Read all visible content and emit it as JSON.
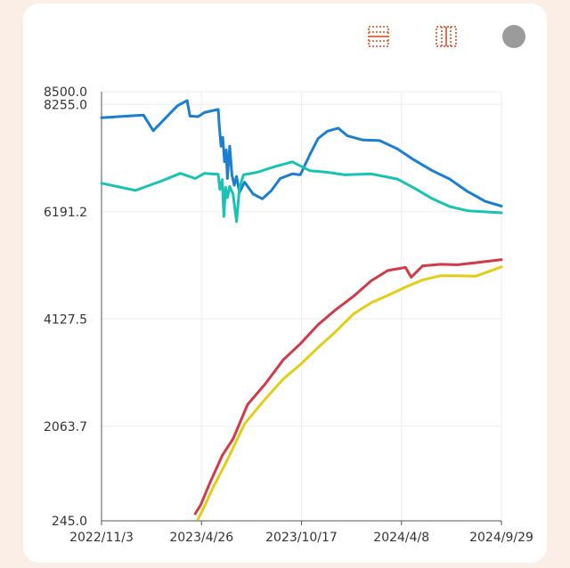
{
  "colors": {
    "page_bg": "#fbeee6",
    "card_bg": "#ffffff",
    "toolbar_icon": "#e8704d",
    "toggle": "#9b9b9b",
    "grid": "#eeeeee",
    "axis": "#555555"
  },
  "toolbar": {
    "icons": [
      "layout-rows-icon",
      "layout-columns-icon",
      "circle-toggle-icon"
    ]
  },
  "chart_data": {
    "type": "line",
    "title": "",
    "xlabel": "",
    "ylabel": "",
    "x_ticks": [
      "2022/11/3",
      "2023/4/26",
      "2023/10/17",
      "2024/4/8",
      "2024/9/29"
    ],
    "x_range": [
      "2022/11/3",
      "2024/9/29"
    ],
    "y_ticks": [
      "245.0",
      "2063.7",
      "4127.5",
      "6191.2",
      "8255.0",
      "8500.0"
    ],
    "ylim": [
      245.0,
      8500.0
    ],
    "grid": true,
    "legend": "none",
    "series": [
      {
        "color": "#1a7fd0",
        "points": [
          [
            "2022/11/3",
            8000
          ],
          [
            "2023/1/15",
            8050
          ],
          [
            "2023/2/1",
            7750
          ],
          [
            "2023/3/15",
            8230
          ],
          [
            "2023/4/1",
            8330
          ],
          [
            "2023/4/6",
            8030
          ],
          [
            "2023/4/20",
            8020
          ],
          [
            "2023/5/1",
            8100
          ],
          [
            "2023/5/25",
            8160
          ],
          [
            "2023/5/27",
            7850
          ],
          [
            "2023/5/30",
            7450
          ],
          [
            "2023/6/2",
            7620
          ],
          [
            "2023/6/5",
            7150
          ],
          [
            "2023/6/8",
            7380
          ],
          [
            "2023/6/10",
            6830
          ],
          [
            "2023/6/14",
            7450
          ],
          [
            "2023/6/18",
            6900
          ],
          [
            "2023/6/22",
            6700
          ],
          [
            "2023/6/26",
            6870
          ],
          [
            "2023/7/1",
            6560
          ],
          [
            "2023/7/10",
            6760
          ],
          [
            "2023/7/25",
            6530
          ],
          [
            "2023/8/10",
            6440
          ],
          [
            "2023/8/25",
            6590
          ],
          [
            "2023/9/10",
            6830
          ],
          [
            "2023/10/1",
            6920
          ],
          [
            "2023/10/15",
            6900
          ],
          [
            "2023/11/1",
            7300
          ],
          [
            "2023/11/15",
            7600
          ],
          [
            "2023/12/1",
            7740
          ],
          [
            "2023/12/20",
            7800
          ],
          [
            "2024/1/5",
            7650
          ],
          [
            "2024/2/1",
            7570
          ],
          [
            "2024/3/1",
            7560
          ],
          [
            "2024/4/1",
            7400
          ],
          [
            "2024/5/1",
            7180
          ],
          [
            "2024/6/1",
            6980
          ],
          [
            "2024/7/1",
            6820
          ],
          [
            "2024/8/1",
            6580
          ],
          [
            "2024/9/1",
            6390
          ],
          [
            "2024/9/29",
            6300
          ]
        ]
      },
      {
        "color": "#19c3b4",
        "points": [
          [
            "2022/11/3",
            6740
          ],
          [
            "2023/1/1",
            6600
          ],
          [
            "2023/2/15",
            6780
          ],
          [
            "2023/3/20",
            6930
          ],
          [
            "2023/4/15",
            6830
          ],
          [
            "2023/5/1",
            6930
          ],
          [
            "2023/5/25",
            6910
          ],
          [
            "2023/5/28",
            6620
          ],
          [
            "2023/6/1",
            6810
          ],
          [
            "2023/6/4",
            6100
          ],
          [
            "2023/6/7",
            6660
          ],
          [
            "2023/6/10",
            6460
          ],
          [
            "2023/6/14",
            6680
          ],
          [
            "2023/6/20",
            6530
          ],
          [
            "2023/6/26",
            6000
          ],
          [
            "2023/7/1",
            6640
          ],
          [
            "2023/7/8",
            6900
          ],
          [
            "2023/8/1",
            6950
          ],
          [
            "2023/9/1",
            7060
          ],
          [
            "2023/10/1",
            7150
          ],
          [
            "2023/11/1",
            6980
          ],
          [
            "2023/12/1",
            6950
          ],
          [
            "2024/1/1",
            6900
          ],
          [
            "2024/2/15",
            6920
          ],
          [
            "2024/4/1",
            6820
          ],
          [
            "2024/5/1",
            6640
          ],
          [
            "2024/6/1",
            6440
          ],
          [
            "2024/7/1",
            6290
          ],
          [
            "2024/8/1",
            6210
          ],
          [
            "2024/9/29",
            6170
          ]
        ]
      },
      {
        "color": "#d13a48",
        "points": [
          [
            "2023/4/15",
            380
          ],
          [
            "2023/4/25",
            560
          ],
          [
            "2023/5/10",
            960
          ],
          [
            "2023/6/1",
            1500
          ],
          [
            "2023/6/20",
            1820
          ],
          [
            "2023/7/15",
            2480
          ],
          [
            "2023/8/15",
            2880
          ],
          [
            "2023/9/15",
            3340
          ],
          [
            "2023/10/15",
            3650
          ],
          [
            "2023/11/15",
            4020
          ],
          [
            "2023/12/15",
            4300
          ],
          [
            "2024/1/15",
            4560
          ],
          [
            "2024/2/15",
            4860
          ],
          [
            "2024/3/15",
            5060
          ],
          [
            "2024/4/15",
            5120
          ],
          [
            "2024/4/25",
            4930
          ],
          [
            "2024/5/15",
            5150
          ],
          [
            "2024/6/15",
            5180
          ],
          [
            "2024/7/15",
            5170
          ],
          [
            "2024/8/15",
            5210
          ],
          [
            "2024/9/29",
            5270
          ]
        ]
      },
      {
        "color": "#e2cf15",
        "points": [
          [
            "2023/4/20",
            280
          ],
          [
            "2023/5/1",
            520
          ],
          [
            "2023/5/15",
            860
          ],
          [
            "2023/6/10",
            1420
          ],
          [
            "2023/7/10",
            2110
          ],
          [
            "2023/8/15",
            2590
          ],
          [
            "2023/9/15",
            2970
          ],
          [
            "2023/10/15",
            3250
          ],
          [
            "2023/11/15",
            3580
          ],
          [
            "2023/12/15",
            3880
          ],
          [
            "2024/1/15",
            4220
          ],
          [
            "2024/2/15",
            4440
          ],
          [
            "2024/3/15",
            4580
          ],
          [
            "2024/4/15",
            4740
          ],
          [
            "2024/5/15",
            4880
          ],
          [
            "2024/6/15",
            4960
          ],
          [
            "2024/7/15",
            4960
          ],
          [
            "2024/8/15",
            4950
          ],
          [
            "2024/9/29",
            5130
          ]
        ]
      }
    ]
  }
}
